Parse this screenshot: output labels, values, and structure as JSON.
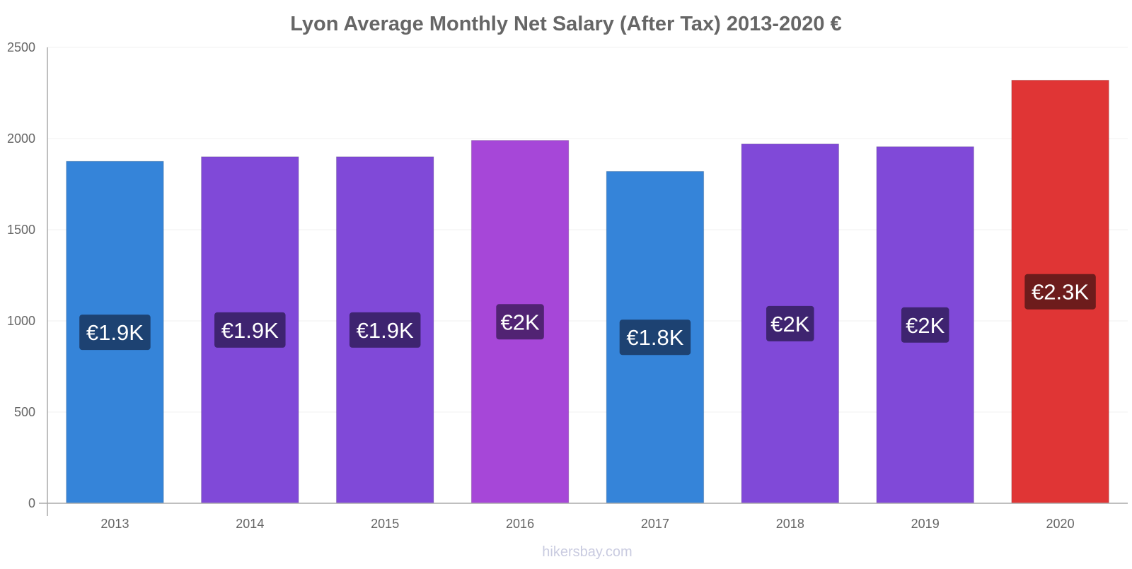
{
  "chart_data": {
    "type": "bar",
    "title": "Lyon Average Monthly Net Salary (After Tax) 2013-2020 €",
    "xlabel": "",
    "ylabel": "",
    "categories": [
      "2013",
      "2014",
      "2015",
      "2016",
      "2017",
      "2018",
      "2019",
      "2020"
    ],
    "values": [
      1875,
      1900,
      1900,
      1990,
      1820,
      1970,
      1955,
      2320
    ],
    "data_labels": [
      "€1.9K",
      "€1.9K",
      "€1.9K",
      "€2K",
      "€1.8K",
      "€2K",
      "€2K",
      "€2.3K"
    ],
    "bar_colors": [
      "#3584d9",
      "#8049d8",
      "#8049d8",
      "#a647d8",
      "#3584d9",
      "#8049d8",
      "#8049d8",
      "#e03535"
    ],
    "label_colors": [
      "#1d4272",
      "#3e2470",
      "#3e2470",
      "#512373",
      "#1d4272",
      "#3e2470",
      "#3e2470",
      "#6d1c1c"
    ],
    "ylim": [
      0,
      2500
    ],
    "yticks": [
      "0",
      "500",
      "1000",
      "1500",
      "2000",
      "2500"
    ],
    "grid": true,
    "legend": "none"
  },
  "watermark": "hikersbay.com",
  "colors": {
    "title": "#666666",
    "axis": "#aaaaaa",
    "grid": "#f0f0f0",
    "tick_text": "#666666",
    "watermark": "#c9cbe0"
  }
}
